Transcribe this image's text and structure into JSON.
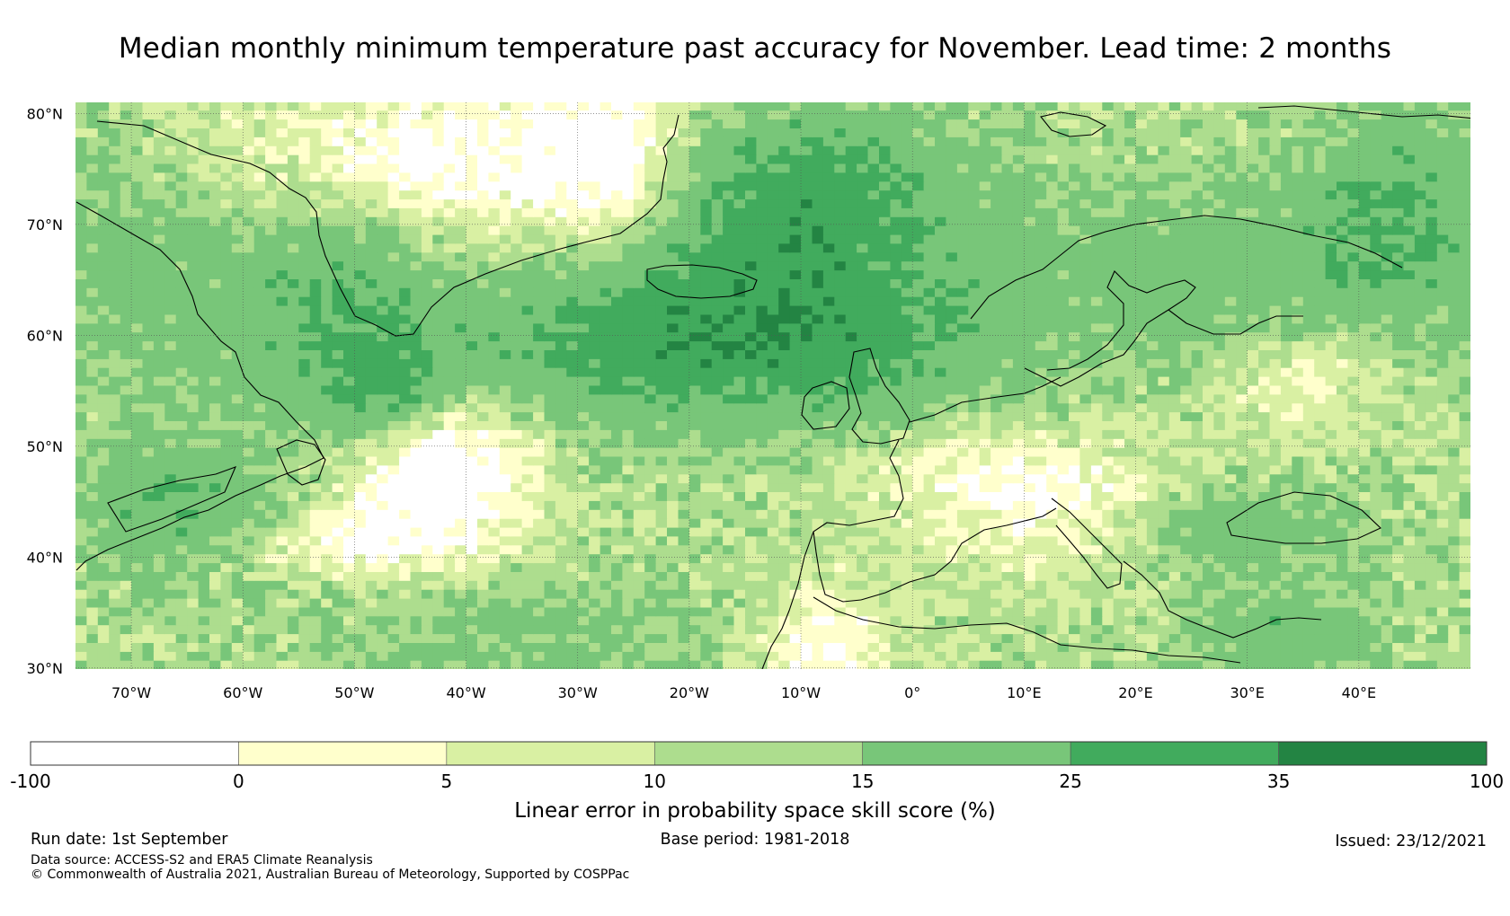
{
  "title": "Median monthly minimum temperature past accuracy for November. Lead time: 2 months",
  "map": {
    "lat_labels": [
      "80°N",
      "70°N",
      "60°N",
      "50°N",
      "40°N",
      "30°N"
    ],
    "lat_values": [
      80,
      70,
      60,
      50,
      40,
      30
    ],
    "lon_labels": [
      "70°W",
      "60°W",
      "50°W",
      "40°W",
      "30°W",
      "20°W",
      "10°W",
      "0°",
      "10°E",
      "20°E",
      "30°E",
      "40°E"
    ],
    "lon_values": [
      -70,
      -60,
      -50,
      -40,
      -30,
      -20,
      -10,
      0,
      10,
      20,
      30,
      40
    ],
    "lon_range": [
      -75,
      50
    ],
    "lat_range": [
      29.9,
      81
    ]
  },
  "colorbar": {
    "tick_labels": [
      "-100",
      "0",
      "5",
      "10",
      "15",
      "25",
      "35",
      "100"
    ],
    "colors": [
      "#ffffff",
      "#ffffcc",
      "#d9f0a3",
      "#addd8e",
      "#78c679",
      "#41ab5d",
      "#238443"
    ],
    "label": "Linear error in probability space skill score (%)"
  },
  "footer": {
    "run_date": "Run date: 1st September",
    "base_period": "Base period: 1981-2018",
    "issued": "Issued: 23/12/2021",
    "data_source": "Data source: ACCESS-S2 and ERA5 Climate Reanalysis",
    "copyright": "© Commonwealth of Australia 2021, Australian Bureau of Meteorology, Supported by COSPPac"
  }
}
